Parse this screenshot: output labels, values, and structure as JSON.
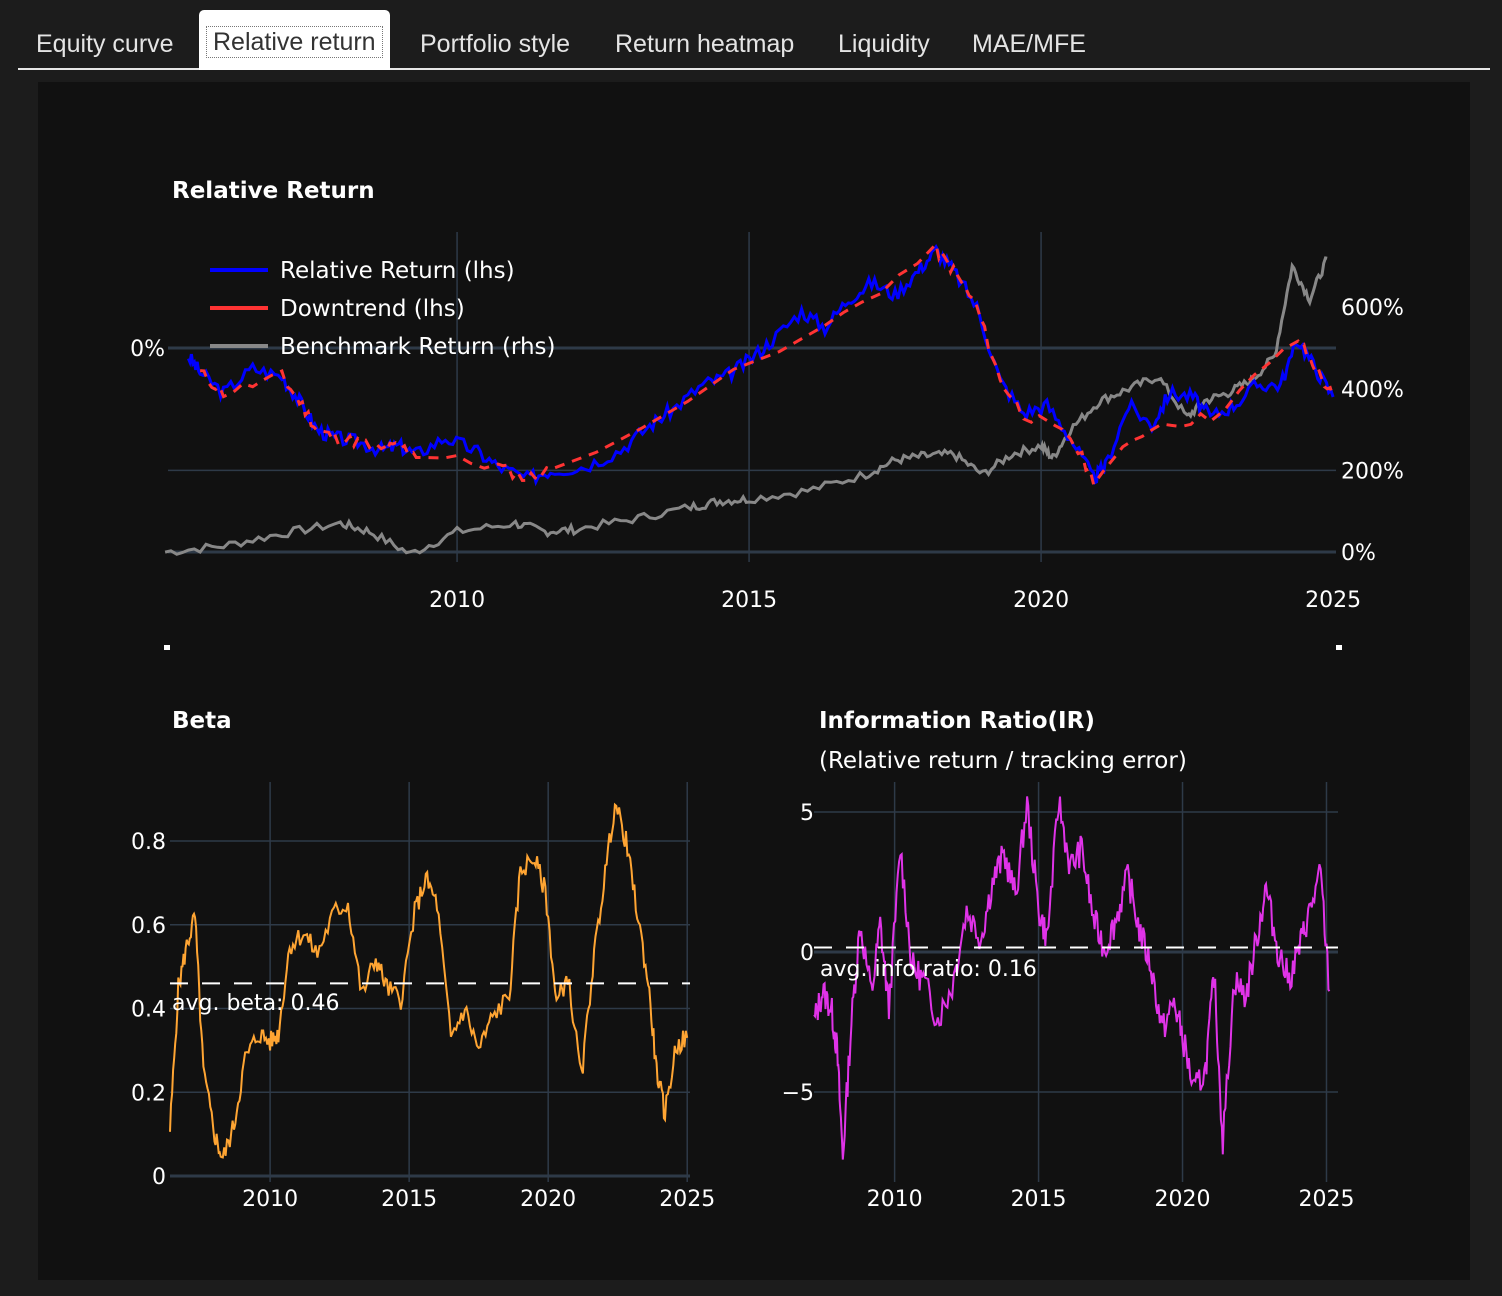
{
  "tabs": [
    {
      "label": "Equity curve",
      "active": false
    },
    {
      "label": "Relative return",
      "active": true
    },
    {
      "label": "Portfolio style",
      "active": false
    },
    {
      "label": "Return heatmap",
      "active": false
    },
    {
      "label": "Liquidity",
      "active": false
    },
    {
      "label": "MAE/MFE",
      "active": false
    }
  ],
  "colors": {
    "relative": "#0000ff",
    "downtrend": "#ff3333",
    "benchmark": "#888888",
    "beta": "#ffa533",
    "ir": "#e033e8",
    "panel_bg": "#111111",
    "grid": "#2e3a48"
  },
  "chart_data": [
    {
      "type": "line",
      "title": "Relative Return",
      "xlim": [
        2005.05,
        2025.05
      ],
      "x_ticks": [
        "2010",
        "2015",
        "2020",
        "2025"
      ],
      "y_left_ticks": [
        "0%"
      ],
      "y_right_ticks": [
        "0%",
        "200%",
        "400%",
        "600%"
      ],
      "y_right_lim": [
        -5,
        760
      ],
      "legend_position": "top-left",
      "series": [
        {
          "name": "Relative Return (lhs)",
          "axis": "left",
          "x": [
            2005.4,
            2005.6,
            2006.0,
            2006.5,
            2007.0,
            2007.3,
            2007.6,
            2007.9,
            2008.3,
            2008.7,
            2009.0,
            2009.3,
            2009.8,
            2010.3,
            2010.7,
            2011.2,
            2011.6,
            2012.2,
            2012.8,
            2013.3,
            2013.7,
            2014.2,
            2014.6,
            2015.0,
            2015.4,
            2015.9,
            2016.3,
            2016.7,
            2017.1,
            2017.5,
            2017.9,
            2018.2,
            2018.5,
            2018.9,
            2019.3,
            2019.7,
            2020.1,
            2020.5,
            2020.9,
            2021.1,
            2021.5,
            2021.9,
            2022.2,
            2022.6,
            2022.9,
            2023.3,
            2023.7,
            2024.1,
            2024.4,
            2024.7,
            2025.0
          ],
          "y": [
            -0.2,
            -0.6,
            -1.1,
            -0.5,
            -0.7,
            -1.3,
            -2.0,
            -2.2,
            -2.3,
            -2.5,
            -2.4,
            -2.6,
            -2.2,
            -2.5,
            -2.9,
            -3.2,
            -3.0,
            -2.9,
            -2.5,
            -1.9,
            -1.5,
            -0.9,
            -0.7,
            -0.3,
            0.2,
            0.9,
            0.5,
            1.2,
            1.6,
            1.3,
            1.9,
            2.4,
            1.9,
            1.0,
            -0.8,
            -1.6,
            -1.4,
            -2.2,
            -3.2,
            -2.9,
            -1.4,
            -1.9,
            -1.1,
            -1.2,
            -1.7,
            -1.4,
            -0.9,
            -0.9,
            0.2,
            -0.5,
            -1.2
          ]
        },
        {
          "name": "Downtrend (lhs)",
          "axis": "left",
          "x": [
            2005.6,
            2006.0,
            2007.0,
            2007.3,
            2007.6,
            2007.9,
            2008.3,
            2008.7,
            2009.0,
            2009.3,
            2010.7,
            2011.2,
            2011.6,
            2016.3,
            2018.2,
            2018.5,
            2018.9,
            2019.3,
            2019.7,
            2020.5,
            2020.9,
            2021.9,
            2022.9,
            2024.4,
            2024.7,
            2025.0
          ],
          "y": [
            -0.6,
            -1.1,
            -0.7,
            -1.3,
            -2.0,
            -2.2,
            -2.3,
            -2.5,
            -2.4,
            -2.6,
            -2.9,
            -3.2,
            -3.0,
            0.5,
            2.4,
            1.9,
            1.0,
            -0.8,
            -1.6,
            -2.2,
            -3.2,
            -1.9,
            -1.7,
            0.2,
            -0.5,
            -1.2
          ]
        },
        {
          "name": "Benchmark Return (rhs)",
          "axis": "right",
          "x": [
            2005.0,
            2006.0,
            2007.0,
            2008.0,
            2008.5,
            2009.2,
            2010.0,
            2011.0,
            2011.5,
            2012.0,
            2013.0,
            2014.0,
            2014.5,
            2015.0,
            2016.0,
            2017.0,
            2017.5,
            2018.0,
            2018.5,
            2019.0,
            2019.5,
            2020.0,
            2020.2,
            2020.5,
            2021.0,
            2021.5,
            2022.0,
            2022.5,
            2022.8,
            2023.2,
            2023.6,
            2024.0,
            2024.3,
            2024.6,
            2024.9
          ],
          "y": [
            0,
            15,
            45,
            70,
            50,
            -5,
            50,
            70,
            50,
            55,
            80,
            110,
            125,
            130,
            150,
            190,
            225,
            235,
            240,
            190,
            240,
            260,
            230,
            300,
            370,
            400,
            430,
            330,
            370,
            390,
            420,
            480,
            700,
            620,
            720
          ]
        }
      ]
    },
    {
      "type": "line",
      "title": "Beta",
      "xlim": [
        2006.4,
        2025.1
      ],
      "ylim": [
        0,
        0.92
      ],
      "x_ticks": [
        "2010",
        "2015",
        "2020",
        "2025"
      ],
      "y_ticks": [
        "0",
        "0.2",
        "0.4",
        "0.6",
        "0.8"
      ],
      "average_line": 0.46,
      "annotation": "avg. beta: 0.46",
      "series": [
        {
          "name": "",
          "x": [
            2006.4,
            2006.7,
            2007.0,
            2007.3,
            2007.6,
            2008.0,
            2008.3,
            2008.7,
            2009.1,
            2009.6,
            2010.0,
            2010.3,
            2010.7,
            2011.2,
            2011.7,
            2012.3,
            2012.8,
            2013.3,
            2013.8,
            2014.2,
            2014.7,
            2015.2,
            2015.6,
            2016.0,
            2016.5,
            2017.0,
            2017.5,
            2018.0,
            2018.6,
            2019.0,
            2019.5,
            2019.9,
            2020.3,
            2020.7,
            2021.2,
            2021.6,
            2022.0,
            2022.4,
            2022.8,
            2023.2,
            2023.6,
            2023.9,
            2024.2,
            2024.6,
            2025.0
          ],
          "y": [
            0.11,
            0.45,
            0.55,
            0.62,
            0.25,
            0.1,
            0.04,
            0.12,
            0.28,
            0.34,
            0.32,
            0.34,
            0.55,
            0.58,
            0.53,
            0.63,
            0.65,
            0.43,
            0.52,
            0.45,
            0.42,
            0.63,
            0.71,
            0.65,
            0.33,
            0.4,
            0.3,
            0.38,
            0.43,
            0.73,
            0.76,
            0.68,
            0.41,
            0.48,
            0.23,
            0.5,
            0.7,
            0.89,
            0.8,
            0.63,
            0.46,
            0.25,
            0.15,
            0.31,
            0.33
          ]
        }
      ]
    },
    {
      "type": "line",
      "title": "Information Ratio(IR)",
      "subtitle": "(Relative return / tracking error)",
      "xlim": [
        2007.2,
        2025.4
      ],
      "ylim": [
        -7.5,
        5.9
      ],
      "x_ticks": [
        "2010",
        "2015",
        "2020",
        "2025"
      ],
      "y_ticks": [
        "−5",
        "0",
        "5"
      ],
      "average_line": 0.16,
      "annotation": "avg. info ratio: 0.16",
      "series": [
        {
          "name": "",
          "x": [
            2007.2,
            2007.5,
            2007.8,
            2008.0,
            2008.2,
            2008.5,
            2008.8,
            2009.2,
            2009.5,
            2009.8,
            2010.2,
            2010.6,
            2011.0,
            2011.5,
            2012.0,
            2012.5,
            2013.0,
            2013.4,
            2013.8,
            2014.2,
            2014.6,
            2015.0,
            2015.3,
            2015.7,
            2016.1,
            2016.5,
            2016.9,
            2017.3,
            2017.7,
            2018.1,
            2018.5,
            2018.9,
            2019.3,
            2019.7,
            2020.0,
            2020.4,
            2020.8,
            2021.1,
            2021.4,
            2021.8,
            2022.2,
            2022.6,
            2022.9,
            2023.3,
            2023.7,
            2024.1,
            2024.4,
            2024.8,
            2025.1
          ],
          "y": [
            -2.5,
            -1.4,
            -2.0,
            -3.5,
            -7.3,
            -2.5,
            1.0,
            -1.5,
            1.0,
            -2.0,
            3.7,
            -0.5,
            -1.0,
            -2.4,
            -1.2,
            1.5,
            0.5,
            2.5,
            3.5,
            2.0,
            5.3,
            1.5,
            0.5,
            5.4,
            3.0,
            3.7,
            1.2,
            0.1,
            1.2,
            2.7,
            0.8,
            -0.5,
            -2.8,
            -1.8,
            -3.0,
            -5.0,
            -4.2,
            -0.8,
            -6.8,
            -1.0,
            -1.6,
            0.6,
            2.3,
            0.1,
            -1.0,
            0.3,
            1.4,
            2.8,
            -1.4
          ]
        }
      ]
    }
  ]
}
